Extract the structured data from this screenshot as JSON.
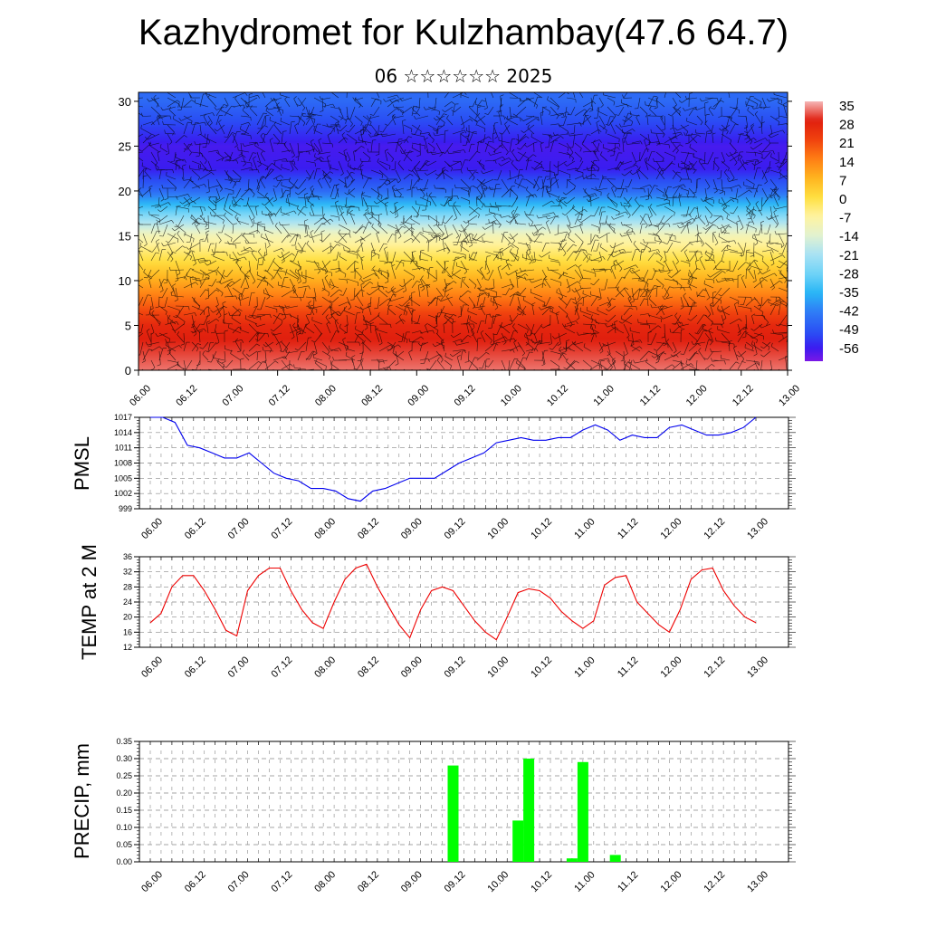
{
  "header": {
    "title": "Kazhydromet for Kulzhambay(47.6 64.7)",
    "subtitle": "06 ☆☆☆☆☆☆ 2025"
  },
  "time_labels": [
    "06.00",
    "06.12",
    "07.00",
    "07.12",
    "08.00",
    "08.12",
    "09.00",
    "09.12",
    "10.00",
    "10.12",
    "11.00",
    "11.12",
    "12.00",
    "12.12",
    "13.00"
  ],
  "colorbar": {
    "labels": [
      "35",
      "28",
      "21",
      "14",
      "7",
      "0",
      "-7",
      "-14",
      "-21",
      "-28",
      "-35",
      "-42",
      "-49",
      "-56"
    ]
  },
  "chart_data": [
    {
      "type": "heatmap",
      "title": "",
      "ylabel": "",
      "ylim": [
        0,
        31
      ],
      "yticks": [
        0,
        5,
        10,
        15,
        20,
        25,
        30
      ],
      "x": [
        "06.00",
        "06.12",
        "07.00",
        "07.12",
        "08.00",
        "08.12",
        "09.00",
        "09.12",
        "10.00",
        "10.12",
        "11.00",
        "11.12",
        "12.00",
        "12.12",
        "13.00"
      ],
      "altitude_profile_km": [
        0,
        5,
        10,
        15,
        20,
        22.5,
        25,
        30
      ],
      "temperature_profile": [
        32,
        26,
        8,
        -10,
        -45,
        -55,
        -56,
        -45
      ],
      "color_range": [
        -56,
        35
      ],
      "overlay": "wind barbs"
    },
    {
      "type": "line",
      "ylabel": "PMSL",
      "ylim": [
        999,
        1017
      ],
      "yticks": [
        999,
        1002,
        1005,
        1008,
        1011,
        1014,
        1017
      ],
      "series": [
        {
          "values": [
            1017,
            1017,
            1016,
            1011.5,
            1011,
            1010,
            1009,
            1009,
            1010,
            1008,
            1006,
            1005,
            1004.5,
            1003,
            1003,
            1002.5,
            1001,
            1000.5,
            1002.5,
            1003,
            1004,
            1005,
            1005,
            1005,
            1006.5,
            1008,
            1009,
            1010,
            1012,
            1012.5,
            1013,
            1012.5,
            1012.5,
            1013,
            1013,
            1014.5,
            1015.5,
            1014.5,
            1012.5,
            1013.5,
            1013,
            1013,
            1015,
            1015.5,
            1014.5,
            1013.5,
            1013.5,
            1014,
            1015,
            1017
          ]
        }
      ]
    },
    {
      "type": "line",
      "ylabel": "TEMP at 2 M",
      "ylim": [
        12,
        36
      ],
      "yticks": [
        12,
        16,
        20,
        24,
        28,
        32,
        36
      ],
      "series": [
        {
          "values": [
            18.5,
            21,
            28,
            31,
            31,
            27,
            22,
            16.5,
            15,
            27,
            31,
            33,
            33,
            27,
            22,
            18.5,
            17,
            24,
            30,
            33,
            34,
            28,
            23,
            18,
            14.5,
            22,
            27,
            28,
            27,
            23,
            19,
            16,
            14,
            20,
            26.5,
            27.5,
            27,
            25,
            21.5,
            19,
            17,
            19,
            28.5,
            30.5,
            31,
            24,
            21,
            18,
            16,
            22,
            30,
            32.5,
            33,
            27,
            23,
            20,
            18.5
          ]
        }
      ]
    },
    {
      "type": "bar",
      "ylabel": "PRECIP, mm",
      "ylim": [
        0,
        0.35
      ],
      "yticks": [
        "0.00",
        "0.05",
        "0.10",
        "0.15",
        "0.20",
        "0.25",
        "0.30",
        "0.35"
      ],
      "bars": [
        {
          "time": "09.12",
          "value": 0.28
        },
        {
          "time": "10.06",
          "value": 0.12
        },
        {
          "time": "10.09",
          "value": 0.3
        },
        {
          "time": "10.21",
          "value": 0.01
        },
        {
          "time": "11.00",
          "value": 0.29
        },
        {
          "time": "11.09",
          "value": 0.02
        }
      ]
    }
  ],
  "colors": {
    "pmsl_line": "#0000ee",
    "temp_line": "#ee0000",
    "precip_bar": "#00ff00"
  }
}
